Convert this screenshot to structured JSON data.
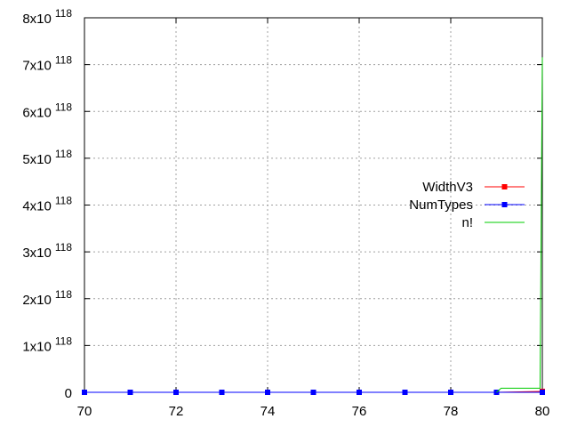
{
  "chart_data": {
    "type": "line",
    "x_axis": {
      "range": [
        70,
        80
      ],
      "tick_values": [
        70,
        72,
        74,
        76,
        78,
        80
      ],
      "tick_labels": [
        "70",
        "72",
        "74",
        "76",
        "78",
        "80"
      ]
    },
    "y_axis": {
      "range": [
        0,
        8e+118
      ],
      "tick_values": [
        0,
        1e+118,
        2e+118,
        3e+118,
        4e+118,
        5e+118,
        6e+118,
        7e+118,
        8e+118
      ],
      "tick_labels": [
        {
          "base": "0",
          "exp": ""
        },
        {
          "base": "1x10",
          "exp": "118"
        },
        {
          "base": "2x10",
          "exp": "118"
        },
        {
          "base": "3x10",
          "exp": "118"
        },
        {
          "base": "4x10",
          "exp": "118"
        },
        {
          "base": "5x10",
          "exp": "118"
        },
        {
          "base": "6x10",
          "exp": "118"
        },
        {
          "base": "7x10",
          "exp": "118"
        },
        {
          "base": "8x10",
          "exp": "118"
        }
      ]
    },
    "grid": true,
    "legend_position": "right-middle",
    "series": [
      {
        "name": "WidthV3",
        "color": "#ff0000",
        "marker": "square",
        "x": [
          79,
          80
        ],
        "y": [
          0,
          2e+116
        ]
      },
      {
        "name": "NumTypes",
        "color": "#0000ff",
        "marker": "square",
        "x": [
          70,
          71,
          72,
          73,
          74,
          75,
          76,
          77,
          78,
          79,
          80
        ],
        "y": [
          0,
          0,
          0,
          0,
          0,
          0,
          0,
          0,
          0,
          0,
          0
        ]
      },
      {
        "name": "n!",
        "color": "#00cc00",
        "marker": "none",
        "x": [
          79,
          79.1,
          79.95,
          80
        ],
        "y": [
          0,
          8.9e+116,
          8.9e+116,
          7.157e+118
        ]
      }
    ]
  }
}
